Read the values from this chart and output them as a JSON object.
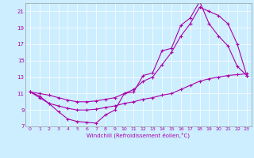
{
  "xlabel": "Windchill (Refroidissement éolien,°C)",
  "background_color": "#cceeff",
  "line_color": "#aa00aa",
  "xlim": [
    -0.5,
    23.5
  ],
  "ylim": [
    7,
    22
  ],
  "yticks": [
    7,
    9,
    11,
    13,
    15,
    17,
    19,
    21
  ],
  "xticks": [
    0,
    1,
    2,
    3,
    4,
    5,
    6,
    7,
    8,
    9,
    10,
    11,
    12,
    13,
    14,
    15,
    16,
    17,
    18,
    19,
    20,
    21,
    22,
    23
  ],
  "line1_x": [
    0,
    1,
    2,
    3,
    4,
    5,
    6,
    7,
    8,
    9,
    10,
    11,
    12,
    13,
    14,
    15,
    16,
    17,
    18,
    19,
    20,
    21,
    22,
    23
  ],
  "line1_y": [
    11.2,
    10.7,
    9.8,
    8.8,
    7.9,
    7.6,
    7.5,
    7.4,
    8.4,
    9.0,
    11.0,
    11.2,
    13.2,
    13.5,
    16.2,
    16.5,
    19.3,
    20.2,
    22.2,
    19.5,
    18.0,
    16.8,
    14.3,
    13.2
  ],
  "line2_x": [
    0,
    1,
    2,
    3,
    4,
    5,
    6,
    7,
    8,
    9,
    10,
    11,
    12,
    13,
    14,
    15,
    16,
    17,
    18,
    19,
    20,
    21,
    22,
    23
  ],
  "line2_y": [
    11.2,
    11.0,
    10.8,
    10.5,
    10.2,
    10.0,
    10.0,
    10.1,
    10.3,
    10.5,
    11.0,
    11.5,
    12.5,
    13.0,
    14.5,
    16.0,
    18.0,
    19.5,
    21.5,
    21.0,
    20.5,
    19.5,
    17.0,
    13.2
  ],
  "line3_x": [
    0,
    1,
    2,
    3,
    4,
    5,
    6,
    7,
    8,
    9,
    10,
    11,
    12,
    13,
    14,
    15,
    16,
    17,
    18,
    19,
    20,
    21,
    22,
    23
  ],
  "line3_y": [
    11.2,
    10.5,
    9.8,
    9.5,
    9.2,
    9.0,
    9.0,
    9.1,
    9.3,
    9.5,
    9.8,
    10.0,
    10.3,
    10.5,
    10.8,
    11.0,
    11.5,
    12.0,
    12.5,
    12.8,
    13.0,
    13.2,
    13.3,
    13.4
  ],
  "grid_color": "#b0dde0",
  "spine_color": "#888888"
}
